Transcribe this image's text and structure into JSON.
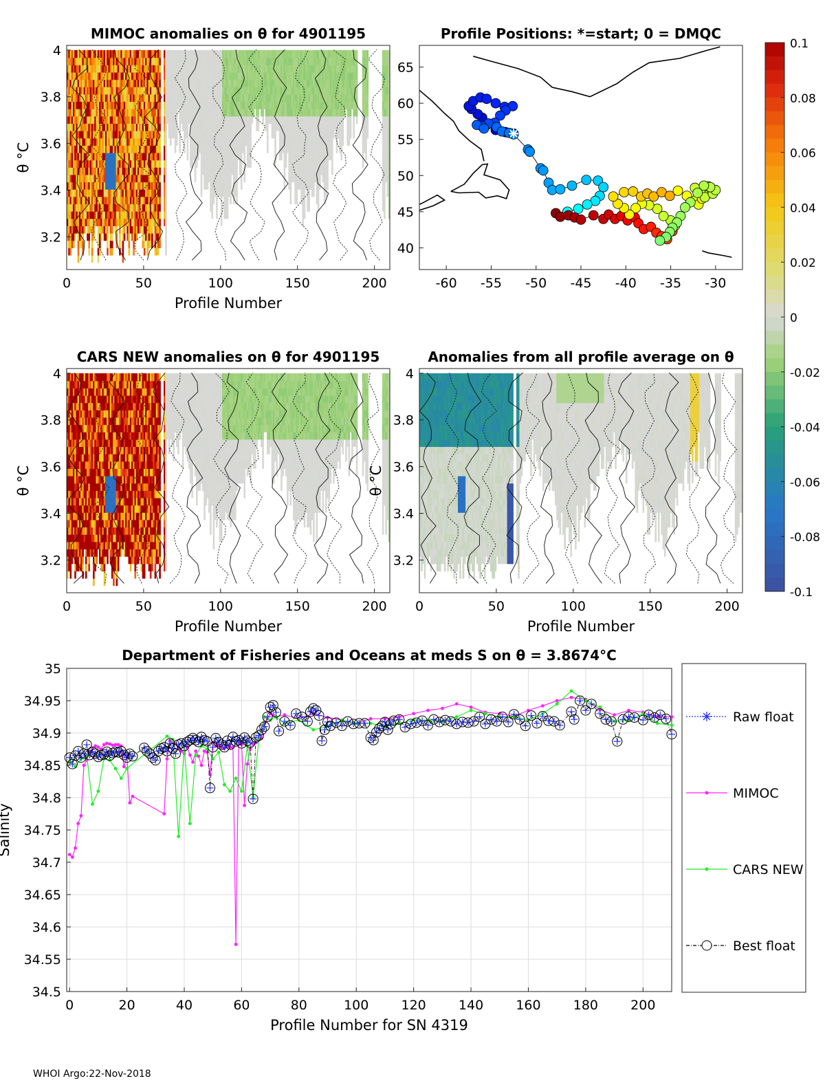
{
  "colors": {
    "raw": "#2233ff",
    "mimoc": "#ff22ff",
    "cars": "#22ee22",
    "best": "#000000"
  },
  "colorbar": {
    "ticks": [
      "0.1",
      "0.08",
      "0.06",
      "0.04",
      "0.02",
      "0",
      "-0.02",
      "-0.04",
      "-0.06",
      "-0.08",
      "-0.1"
    ],
    "range": [
      -0.1,
      0.1
    ]
  },
  "footer": "WHOI Argo:22-Nov-2018",
  "chart_data": [
    {
      "id": "mimoc",
      "type": "heatmap",
      "title": "MIMOC anomalies on θ  for 4901195",
      "xlabel": "Profile Number",
      "ylabel": "θ °C",
      "xlim": [
        0,
        210
      ],
      "ylim": [
        3.06,
        4.02
      ],
      "xticks": [
        "0",
        "50",
        "100",
        "150",
        "200"
      ],
      "yticks": [
        "3.2",
        "3.4",
        "3.6",
        "3.8",
        "4"
      ],
      "field": "warm_early"
    },
    {
      "id": "positions",
      "type": "scatter",
      "title": "Profile Positions: *=start; 0 = DMQC",
      "xlabel": "",
      "ylabel": "",
      "xlim": [
        -63,
        -27
      ],
      "ylim": [
        37,
        68
      ],
      "xticks": [
        "-60",
        "-55",
        "-50",
        "-45",
        "-40",
        "-35",
        "-30"
      ],
      "yticks": [
        "40",
        "45",
        "50",
        "55",
        "60",
        "65"
      ],
      "start": [
        -52.5,
        55.8
      ],
      "track": [
        [
          -52.5,
          55.8
        ],
        [
          -53.4,
          56.0
        ],
        [
          -54.5,
          56.3
        ],
        [
          -55.5,
          57.0
        ],
        [
          -56.0,
          58.0
        ],
        [
          -56.5,
          58.5
        ],
        [
          -57.2,
          59.2
        ],
        [
          -57.5,
          59.6
        ],
        [
          -57.0,
          60.3
        ],
        [
          -56.2,
          60.8
        ],
        [
          -55.5,
          60.6
        ],
        [
          -54.5,
          60.0
        ],
        [
          -53.5,
          59.5
        ],
        [
          -52.6,
          59.6
        ],
        [
          -53.4,
          59.0
        ],
        [
          -54.0,
          58.3
        ],
        [
          -54.6,
          57.3
        ],
        [
          -55.3,
          57.2
        ],
        [
          -56.0,
          56.8
        ],
        [
          -56.6,
          57.0
        ],
        [
          -55.8,
          56.5
        ],
        [
          -54.4,
          56.7
        ],
        [
          -53.8,
          56.1
        ],
        [
          -53.0,
          55.9
        ],
        [
          -52.5,
          55.7
        ],
        [
          -50.9,
          53.6
        ],
        [
          -50.7,
          53.3
        ],
        [
          -49.5,
          51.0
        ],
        [
          -49.2,
          50.7
        ],
        [
          -48.6,
          49.0
        ],
        [
          -48.2,
          48.0
        ],
        [
          -47.3,
          48.1
        ],
        [
          -46.0,
          48.6
        ],
        [
          -44.4,
          49.4
        ],
        [
          -43.1,
          49.3
        ],
        [
          -42.5,
          48.4
        ],
        [
          -42.9,
          47.2
        ],
        [
          -43.4,
          46.5
        ],
        [
          -44.3,
          46.0
        ],
        [
          -45.3,
          45.4
        ],
        [
          -46.5,
          45.0
        ],
        [
          -47.8,
          44.8
        ],
        [
          -47.3,
          44.3
        ],
        [
          -46.4,
          44.5
        ],
        [
          -45.7,
          44.2
        ],
        [
          -45.0,
          43.9
        ],
        [
          -43.6,
          44.5
        ],
        [
          -42.5,
          44.0
        ],
        [
          -41.9,
          44.6
        ],
        [
          -41.2,
          44.0
        ],
        [
          -40.5,
          44.4
        ],
        [
          -39.8,
          43.8
        ],
        [
          -39.0,
          44.2
        ],
        [
          -38.6,
          43.4
        ],
        [
          -38.0,
          42.6
        ],
        [
          -37.2,
          42.9
        ],
        [
          -36.6,
          42.1
        ],
        [
          -36.0,
          41.6
        ],
        [
          -35.4,
          41.2
        ],
        [
          -34.8,
          42.3
        ],
        [
          -34.5,
          43.1
        ],
        [
          -35.0,
          43.8
        ],
        [
          -35.8,
          44.4
        ],
        [
          -36.5,
          45.4
        ],
        [
          -37.4,
          45.9
        ],
        [
          -38.2,
          46.1
        ],
        [
          -38.9,
          45.5
        ],
        [
          -39.6,
          44.6
        ],
        [
          -40.2,
          45.5
        ],
        [
          -40.9,
          46.1
        ],
        [
          -41.4,
          47.1
        ],
        [
          -40.2,
          47.7
        ],
        [
          -39.2,
          47.8
        ],
        [
          -38.3,
          47.1
        ],
        [
          -37.6,
          47.5
        ],
        [
          -36.9,
          47.1
        ],
        [
          -36.0,
          47.7
        ],
        [
          -35.1,
          47.2
        ],
        [
          -34.2,
          47.9
        ],
        [
          -33.2,
          47.2
        ],
        [
          -32.4,
          46.5
        ],
        [
          -31.9,
          46.0
        ],
        [
          -31.5,
          46.8
        ],
        [
          -30.9,
          47.5
        ],
        [
          -30.4,
          48.0
        ],
        [
          -30.8,
          48.5
        ],
        [
          -31.7,
          47.9
        ],
        [
          -32.3,
          48.3
        ],
        [
          -31.2,
          47.0
        ],
        [
          -30.3,
          47.5
        ],
        [
          -30.0,
          48.0
        ],
        [
          -30.6,
          48.4
        ],
        [
          -31.3,
          48.6
        ],
        [
          -32.0,
          47.6
        ],
        [
          -32.8,
          46.3
        ],
        [
          -33.4,
          45.6
        ],
        [
          -33.9,
          44.4
        ],
        [
          -34.3,
          43.5
        ],
        [
          -34.8,
          42.8
        ],
        [
          -35.1,
          42.2
        ],
        [
          -35.5,
          41.5
        ],
        [
          -36.2,
          41.0
        ]
      ]
    },
    {
      "id": "cars",
      "type": "heatmap",
      "title": "CARS NEW anomalies on θ for 4901195",
      "xlabel": "Profile Number",
      "ylabel": "θ °C",
      "xlim": [
        0,
        210
      ],
      "ylim": [
        3.06,
        4.02
      ],
      "xticks": [
        "0",
        "50",
        "100",
        "150",
        "200"
      ],
      "yticks": [
        "3.2",
        "3.4",
        "3.6",
        "3.8",
        "4"
      ],
      "field": "warm_early_strong"
    },
    {
      "id": "allavg",
      "type": "heatmap",
      "title": "Anomalies from all profile average on θ",
      "xlabel": "Profile Number",
      "ylabel": "θ °C",
      "xlim": [
        0,
        210
      ],
      "ylim": [
        3.06,
        4.02
      ],
      "xticks": [
        "0",
        "50",
        "100",
        "150",
        "200"
      ],
      "yticks": [
        "3.2",
        "3.4",
        "3.6",
        "3.8",
        "4"
      ],
      "field": "cool_early"
    },
    {
      "id": "salinity",
      "type": "line",
      "title": "Department of Fisheries and Oceans at meds S on θ = 3.8674°C",
      "xlabel": "Profile Number for SN 4319",
      "ylabel": "Salinity",
      "xlim": [
        -1,
        210
      ],
      "ylim": [
        34.5,
        35.0
      ],
      "xticks": [
        0,
        20,
        40,
        60,
        80,
        100,
        120,
        140,
        160,
        180,
        200
      ],
      "yticks": [
        34.5,
        34.55,
        34.6,
        34.65,
        34.7,
        34.75,
        34.8,
        34.85,
        34.9,
        34.95,
        35
      ],
      "legend": [
        "Raw float",
        "MIMOC",
        "CARS NEW",
        "Best float"
      ],
      "series": [
        {
          "name": "Best float",
          "x": [
            0,
            1,
            2,
            3,
            4,
            5,
            6,
            7,
            8,
            9,
            10,
            11,
            12,
            13,
            14,
            15,
            16,
            17,
            18,
            19,
            20,
            21,
            22,
            26,
            27,
            28,
            29,
            30,
            31,
            32,
            33,
            34,
            35,
            36,
            37,
            38,
            39,
            40,
            41,
            42,
            43,
            44,
            45,
            46,
            47,
            48,
            49,
            50,
            51,
            52,
            53,
            54,
            55,
            56,
            57,
            58,
            59,
            60,
            61,
            62,
            63,
            64,
            65,
            66,
            67,
            68,
            69,
            70,
            71,
            72,
            73,
            75,
            77,
            79,
            81,
            83,
            84,
            85,
            86,
            87,
            88,
            89,
            90,
            91,
            93,
            95,
            97,
            99,
            101,
            103,
            105,
            106,
            107,
            108,
            109,
            110,
            111,
            112,
            113,
            115,
            117,
            119,
            121,
            123,
            125,
            127,
            129,
            131,
            133,
            135,
            137,
            139,
            141,
            143,
            145,
            147,
            149,
            151,
            153,
            155,
            157,
            159,
            161,
            163,
            165,
            167,
            169,
            171,
            175,
            176,
            178,
            180,
            182,
            185,
            187,
            189,
            191,
            193,
            195,
            197,
            200,
            202,
            204,
            206,
            208,
            210
          ],
          "y": [
            34.862,
            34.852,
            34.865,
            34.872,
            34.862,
            34.868,
            34.882,
            34.866,
            34.871,
            34.868,
            34.863,
            34.866,
            34.867,
            34.871,
            34.865,
            34.869,
            34.871,
            34.87,
            34.872,
            34.866,
            34.862,
            34.868,
            34.864,
            34.877,
            34.872,
            34.868,
            34.862,
            34.858,
            34.872,
            34.876,
            34.878,
            34.872,
            34.884,
            34.876,
            34.868,
            34.882,
            34.884,
            34.88,
            34.886,
            34.889,
            34.892,
            34.889,
            34.886,
            34.894,
            34.889,
            34.887,
            34.815,
            34.878,
            34.892,
            34.886,
            34.882,
            34.878,
            34.888,
            34.882,
            34.894,
            34.887,
            34.889,
            34.884,
            34.893,
            34.888,
            34.885,
            34.798,
            34.893,
            34.896,
            34.905,
            34.91,
            34.925,
            34.94,
            34.943,
            34.932,
            34.903,
            34.918,
            34.912,
            34.93,
            34.925,
            34.918,
            34.933,
            34.938,
            34.935,
            34.927,
            34.888,
            34.905,
            34.917,
            34.911,
            34.916,
            34.911,
            34.918,
            34.914,
            34.915,
            34.915,
            34.893,
            34.889,
            34.901,
            34.907,
            34.911,
            34.917,
            34.905,
            34.914,
            34.919,
            34.921,
            34.909,
            34.914,
            34.916,
            34.919,
            34.912,
            34.921,
            34.917,
            34.92,
            34.918,
            34.914,
            34.917,
            34.916,
            34.918,
            34.925,
            34.914,
            34.921,
            34.918,
            34.925,
            34.917,
            34.929,
            34.921,
            34.911,
            34.927,
            34.915,
            34.926,
            34.919,
            34.918,
            34.912,
            34.933,
            34.921,
            34.95,
            34.935,
            34.945,
            34.93,
            34.921,
            34.918,
            34.887,
            34.921,
            34.925,
            34.924,
            34.92,
            34.928,
            34.924,
            34.928,
            34.922,
            34.898
          ]
        },
        {
          "name": "MIMOC",
          "x": [
            0,
            1,
            2,
            3,
            4,
            5,
            6,
            7,
            8,
            9,
            10,
            11,
            12,
            13,
            14,
            15,
            16,
            17,
            18,
            19,
            20,
            21,
            22,
            33,
            34,
            35,
            36,
            37,
            38,
            39,
            40,
            41,
            42,
            43,
            44,
            45,
            46,
            47,
            48,
            49,
            50,
            51,
            52,
            53,
            54,
            55,
            56,
            57,
            58,
            59,
            60,
            61,
            62,
            63,
            64,
            65,
            66,
            67,
            68,
            69,
            70,
            71,
            72,
            75,
            80,
            85,
            90,
            95,
            100,
            105,
            110,
            115,
            120,
            125,
            130,
            135,
            140,
            145,
            150,
            155,
            160,
            165,
            170,
            175,
            180,
            185,
            190,
            195,
            200,
            205,
            210
          ],
          "y": [
            34.712,
            34.708,
            34.722,
            34.76,
            34.772,
            34.85,
            34.858,
            34.87,
            34.876,
            34.88,
            34.878,
            34.875,
            34.882,
            34.884,
            34.883,
            34.881,
            34.882,
            34.882,
            34.88,
            34.848,
            34.865,
            34.792,
            34.802,
            34.775,
            34.86,
            34.888,
            34.885,
            34.883,
            34.878,
            34.872,
            34.868,
            34.878,
            34.866,
            34.855,
            34.872,
            34.864,
            34.85,
            34.872,
            34.87,
            34.836,
            34.885,
            34.88,
            34.882,
            34.878,
            34.876,
            34.879,
            34.878,
            34.878,
            34.573,
            34.886,
            34.882,
            34.788,
            34.852,
            34.875,
            34.883,
            34.885,
            34.89,
            34.892,
            34.915,
            34.922,
            34.93,
            34.928,
            34.925,
            34.928,
            34.922,
            34.93,
            34.924,
            34.92,
            34.915,
            34.922,
            34.922,
            34.925,
            34.93,
            34.935,
            34.938,
            34.945,
            34.94,
            34.932,
            34.93,
            34.926,
            34.935,
            34.942,
            34.95,
            34.955,
            34.952,
            34.936,
            34.928,
            34.935,
            34.932,
            34.925,
            34.925
          ]
        },
        {
          "name": "CARS NEW",
          "x": [
            0,
            2,
            4,
            6,
            8,
            10,
            12,
            14,
            16,
            18,
            20,
            34,
            36,
            38,
            40,
            42,
            44,
            46,
            48,
            50,
            52,
            54,
            56,
            58,
            60,
            62,
            64,
            66,
            68,
            70,
            72,
            75,
            80,
            85,
            90,
            95,
            100,
            105,
            110,
            115,
            120,
            125,
            130,
            135,
            140,
            145,
            150,
            155,
            160,
            165,
            170,
            175,
            180,
            185,
            190,
            195,
            200,
            205,
            210
          ],
          "y": [
            34.855,
            34.848,
            34.86,
            34.865,
            34.79,
            34.81,
            34.86,
            34.858,
            34.845,
            34.83,
            34.845,
            34.895,
            34.89,
            34.74,
            34.88,
            34.76,
            34.865,
            34.88,
            34.875,
            34.86,
            34.87,
            34.82,
            34.81,
            34.83,
            34.81,
            34.88,
            34.8,
            34.89,
            34.925,
            34.92,
            34.925,
            34.915,
            34.92,
            34.905,
            34.91,
            34.92,
            34.915,
            34.915,
            34.91,
            34.915,
            34.92,
            34.92,
            34.918,
            34.925,
            34.935,
            34.93,
            34.925,
            34.925,
            34.92,
            34.93,
            34.945,
            34.965,
            34.95,
            34.94,
            34.918,
            34.92,
            34.93,
            34.915,
            34.912
          ]
        }
      ]
    }
  ]
}
